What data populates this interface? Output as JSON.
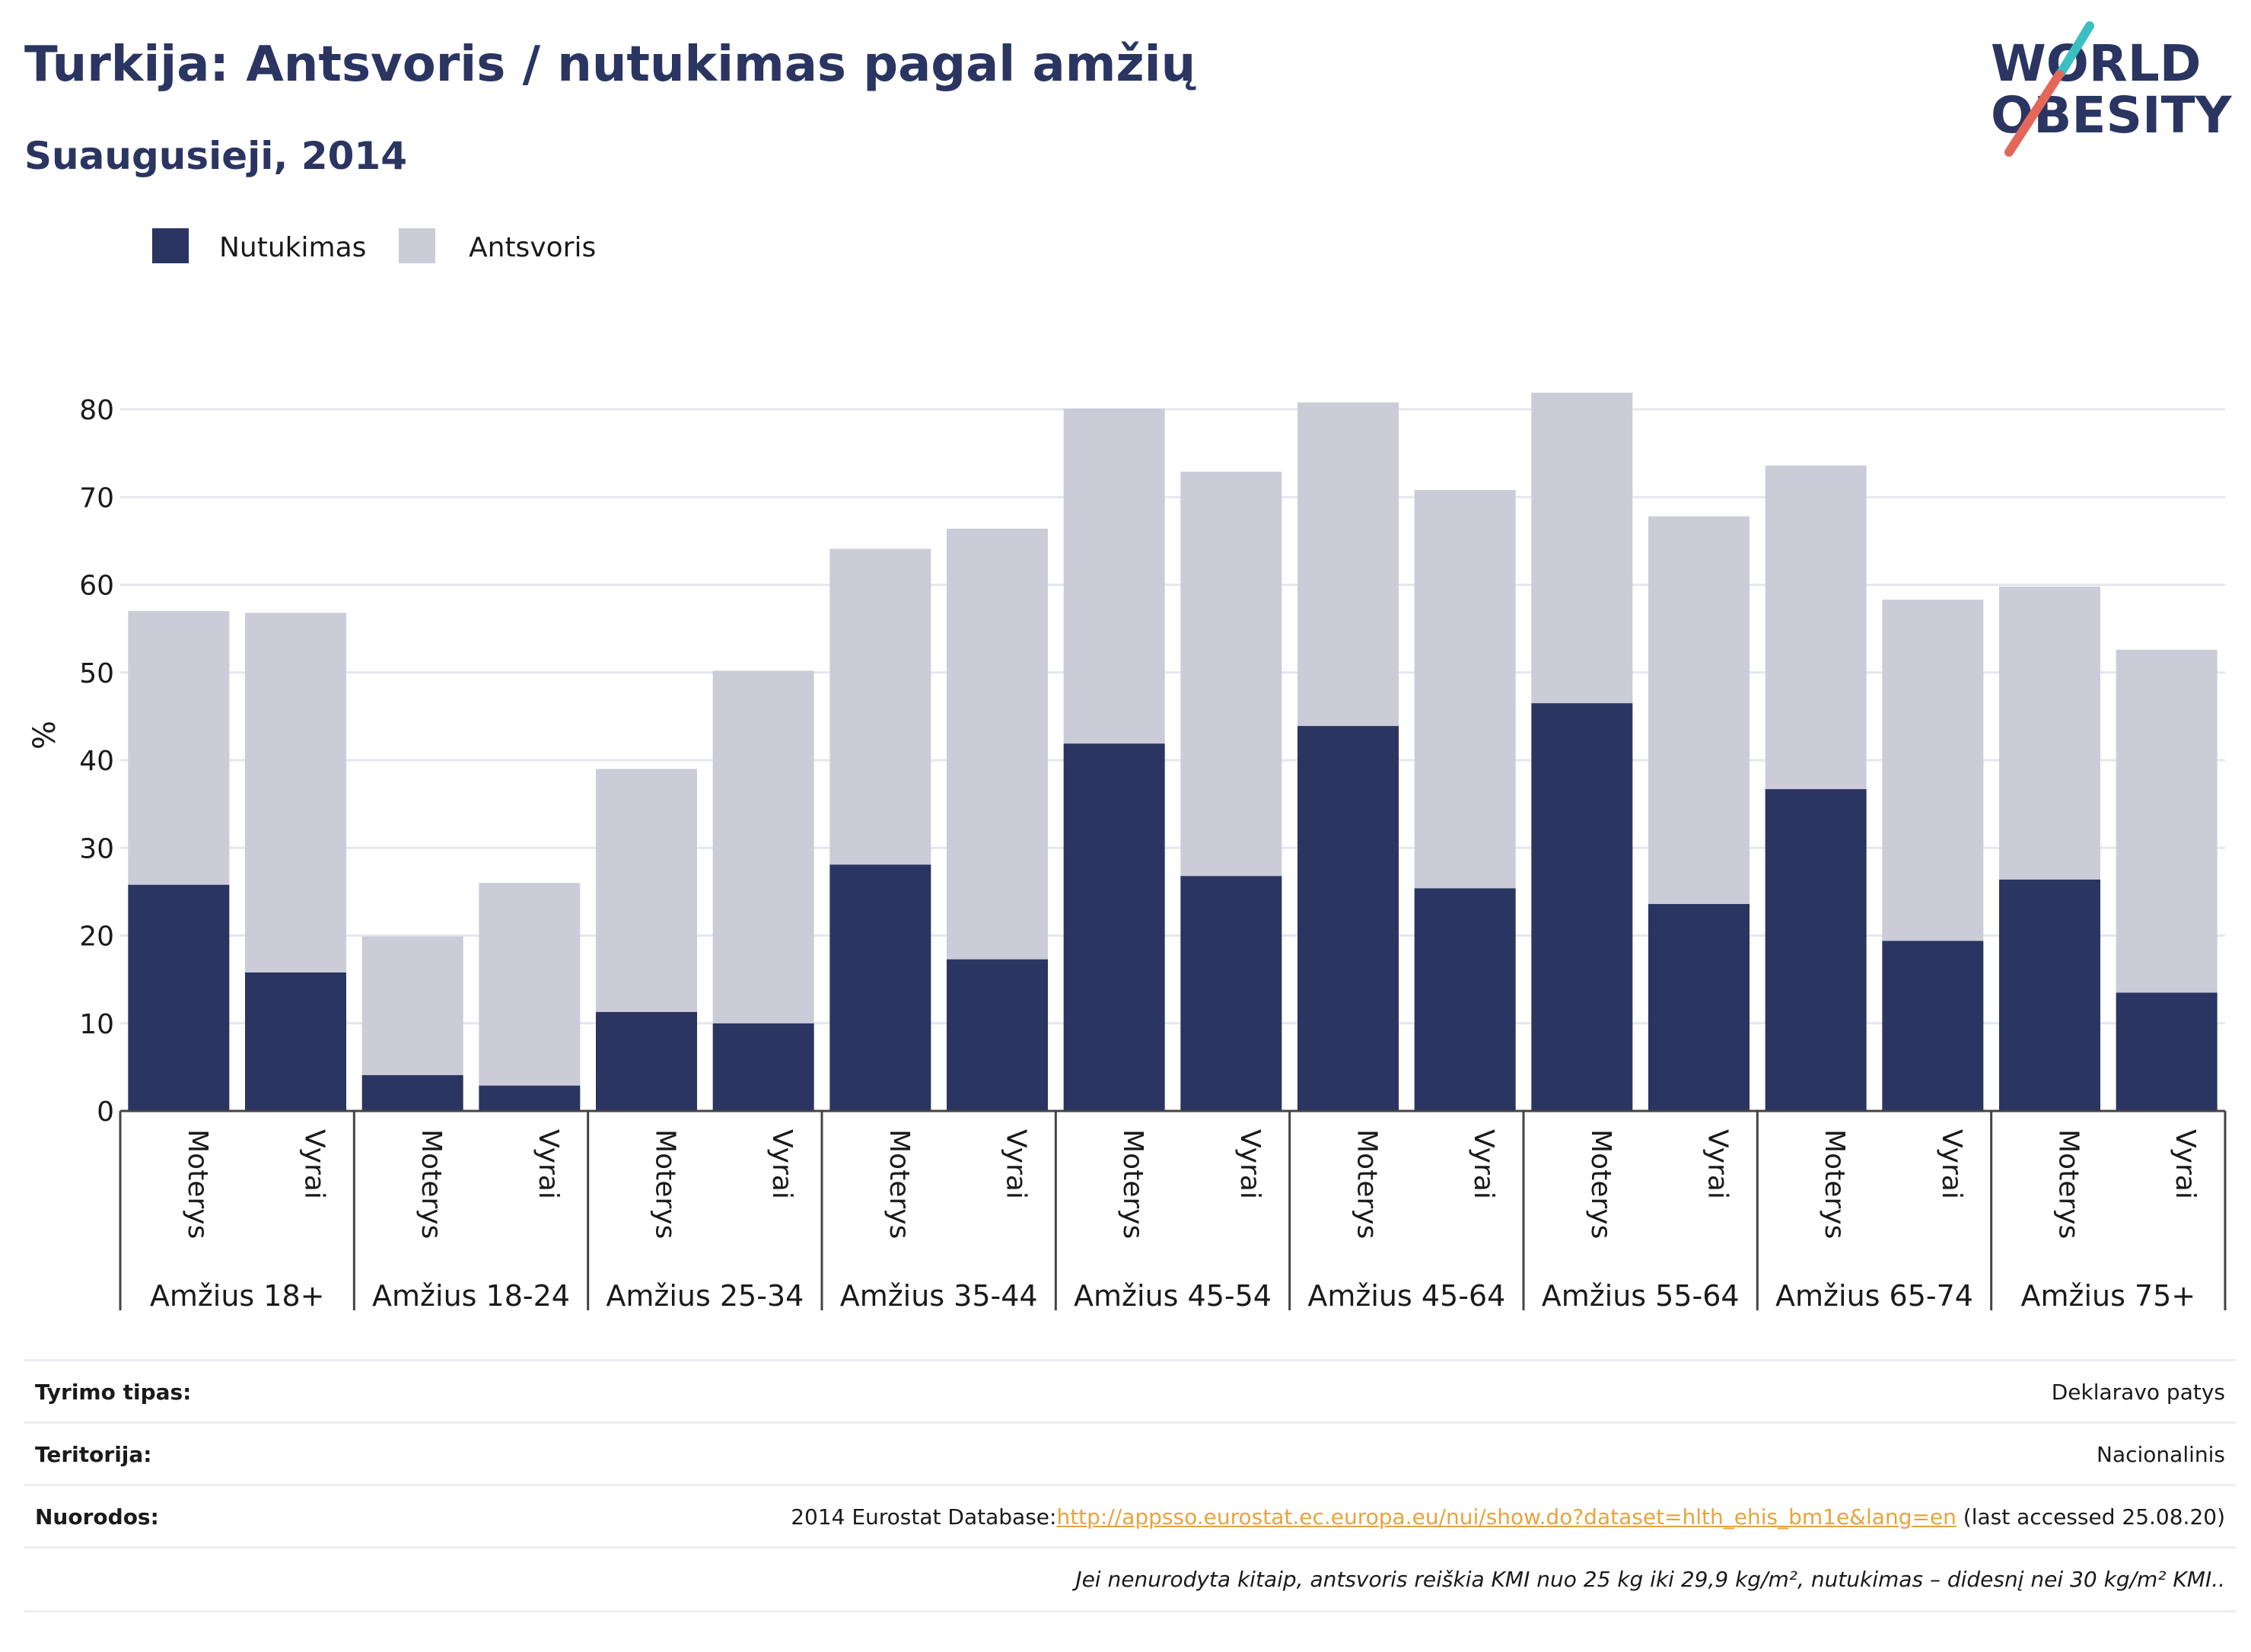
{
  "header": {
    "title": "Turkija: Antsvoris / nutukimas pagal amžių",
    "subtitle": "Suaugusieji, 2014"
  },
  "logo": {
    "line1": "WORLD",
    "line2": "OBESITY",
    "accent_colors": [
      "#3bbfc1",
      "#e4685a"
    ]
  },
  "colors": {
    "obesity": "#2a3562",
    "overweight": "#cbccd8",
    "gridline": "#e6e7ee",
    "axis": "#444444"
  },
  "chart_data": {
    "type": "bar",
    "stacked": true,
    "legend_position": "top-left",
    "grid": true,
    "ylabel": "%",
    "ylim": [
      0,
      85
    ],
    "yticks": [
      0,
      10,
      20,
      30,
      40,
      50,
      60,
      70,
      80
    ],
    "groups": [
      "Amžius 18+",
      "Amžius 18-24",
      "Amžius 25-34",
      "Amžius 35-44",
      "Amžius 45-54",
      "Amžius 45-64",
      "Amžius 55-64",
      "Amžius 65-74",
      "Amžius 75+"
    ],
    "subcategories": [
      "Moterys",
      "Vyrai"
    ],
    "series": [
      {
        "name": "Nutukimas",
        "values": [
          25.8,
          15.8,
          4.1,
          2.9,
          11.3,
          10.0,
          28.1,
          17.3,
          41.9,
          26.8,
          43.9,
          25.4,
          46.5,
          23.6,
          36.7,
          19.4,
          26.4,
          13.5
        ]
      },
      {
        "name": "Antsvoris",
        "values": [
          31.2,
          41.0,
          15.8,
          23.1,
          27.7,
          40.2,
          36.0,
          49.1,
          38.2,
          46.1,
          36.9,
          45.4,
          35.4,
          44.2,
          36.9,
          38.9,
          33.4,
          39.1
        ]
      }
    ]
  },
  "info": {
    "survey_type_label": "Tyrimo tipas:",
    "survey_type_value": "Deklaravo patys",
    "territory_label": "Teritorija:",
    "territory_value": "Nacionalinis",
    "references_label": "Nuorodos:",
    "references_prefix": "2014 Eurostat Database:",
    "references_link": "http://appsso.eurostat.ec.europa.eu/nui/show.do?dataset=hlth_ehis_bm1e&lang=en",
    "references_suffix": " (last accessed 25.08.20)",
    "note": "Jei nenurodyta kitaip, antsvoris reiškia KMI nuo 25 kg iki 29,9 kg/m², nutukimas – didesnį nei 30 kg/m² KMI.."
  }
}
